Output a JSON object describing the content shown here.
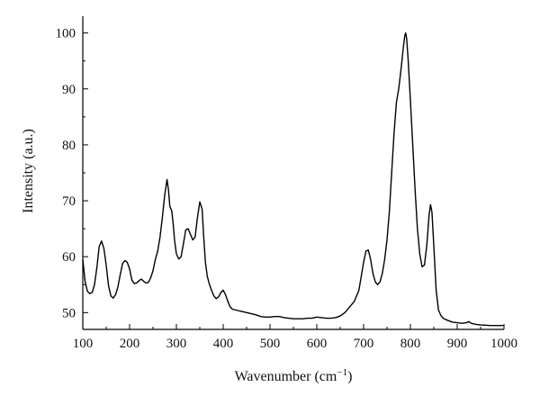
{
  "chart_data": {
    "type": "line",
    "xlabel": "Wavenumber (cm",
    "xlabel_sup": "−1",
    "xlabel_suffix": ")",
    "ylabel": "Intensity (a.u.)",
    "xlim": [
      100,
      1000
    ],
    "ylim": [
      47,
      103
    ],
    "grid": false,
    "x_ticks": [
      100,
      200,
      300,
      400,
      500,
      600,
      700,
      800,
      900,
      1000
    ],
    "y_ticks": [
      50,
      60,
      70,
      80,
      90,
      100
    ],
    "line_color": "#000000",
    "series": [
      {
        "x": [
          100,
          105,
          110,
          115,
          120,
          125,
          130,
          135,
          140,
          145,
          150,
          155,
          160,
          165,
          170,
          175,
          180,
          185,
          190,
          195,
          200,
          205,
          210,
          215,
          220,
          225,
          230,
          235,
          240,
          245,
          250,
          255,
          260,
          265,
          270,
          275,
          280,
          283,
          286,
          290,
          293,
          296,
          300,
          305,
          310,
          315,
          320,
          325,
          330,
          335,
          340,
          345,
          350,
          355,
          358,
          362,
          366,
          370,
          375,
          380,
          385,
          390,
          395,
          400,
          405,
          410,
          415,
          420,
          425,
          430,
          440,
          450,
          460,
          470,
          480,
          490,
          500,
          510,
          520,
          530,
          540,
          550,
          560,
          570,
          580,
          590,
          600,
          610,
          620,
          630,
          640,
          650,
          660,
          670,
          680,
          690,
          695,
          700,
          705,
          710,
          715,
          720,
          725,
          730,
          735,
          740,
          745,
          750,
          755,
          760,
          765,
          770,
          775,
          780,
          785,
          788,
          790,
          792,
          795,
          800,
          805,
          810,
          815,
          820,
          825,
          830,
          835,
          840,
          843,
          846,
          850,
          855,
          860,
          865,
          870,
          880,
          890,
          900,
          910,
          920,
          925,
          930,
          940,
          950,
          960,
          970,
          980,
          990,
          1000
        ],
        "y": [
          59.5,
          55.5,
          53.8,
          53.4,
          53.6,
          55.0,
          58.0,
          61.8,
          62.8,
          61.5,
          58.5,
          54.8,
          53.0,
          52.6,
          53.2,
          54.6,
          56.8,
          58.8,
          59.3,
          59.0,
          57.8,
          55.8,
          55.2,
          55.3,
          55.7,
          56.0,
          55.6,
          55.3,
          55.4,
          56.2,
          57.5,
          59.5,
          61.0,
          63.5,
          67.0,
          71.0,
          73.8,
          72.0,
          69.0,
          68.2,
          66.0,
          63.0,
          60.5,
          59.6,
          60.0,
          62.3,
          64.8,
          65.0,
          64.0,
          63.0,
          63.5,
          67.0,
          69.8,
          68.5,
          64.0,
          59.0,
          56.5,
          55.2,
          54.0,
          53.0,
          52.5,
          52.8,
          53.6,
          54.0,
          53.2,
          52.0,
          51.0,
          50.6,
          50.5,
          50.4,
          50.2,
          50.0,
          49.8,
          49.6,
          49.3,
          49.2,
          49.2,
          49.3,
          49.3,
          49.1,
          49.0,
          48.9,
          48.9,
          48.9,
          49.0,
          49.0,
          49.2,
          49.1,
          49.0,
          49.0,
          49.1,
          49.4,
          50.0,
          51.0,
          52.0,
          54.0,
          56.5,
          59.0,
          61.0,
          61.2,
          59.5,
          57.0,
          55.5,
          55.0,
          55.5,
          57.0,
          59.5,
          63.0,
          68.0,
          75.0,
          82.0,
          87.5,
          90.0,
          93.5,
          97.5,
          99.5,
          100.0,
          99.0,
          95.5,
          88.0,
          80.0,
          72.0,
          65.0,
          60.5,
          58.2,
          58.5,
          62.0,
          67.5,
          69.3,
          68.0,
          62.0,
          54.0,
          50.5,
          49.5,
          49.0,
          48.6,
          48.3,
          48.2,
          48.1,
          48.2,
          48.4,
          48.1,
          47.9,
          47.8,
          47.75,
          47.7,
          47.7,
          47.7,
          47.7
        ]
      }
    ]
  }
}
